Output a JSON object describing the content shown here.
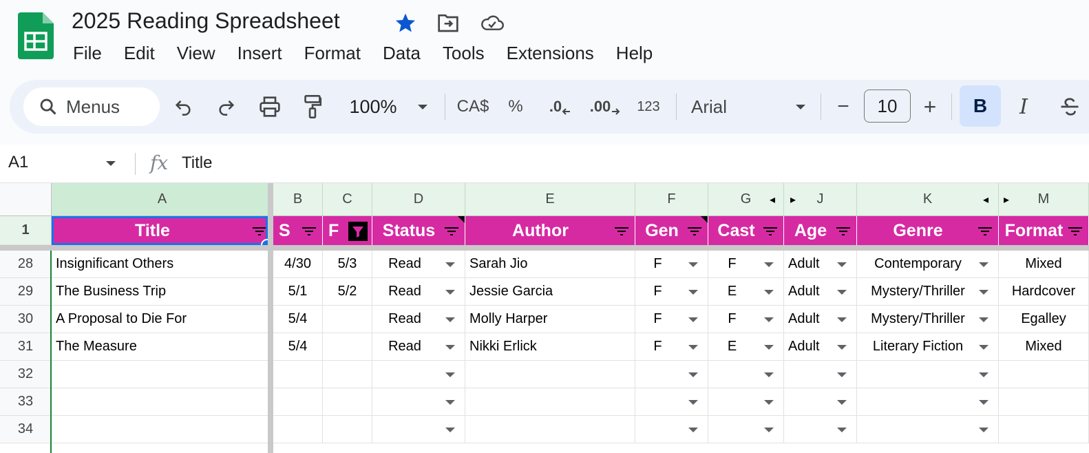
{
  "app": {
    "doc_title": "2025 Reading Spreadsheet",
    "menu": [
      "File",
      "Edit",
      "View",
      "Insert",
      "Format",
      "Data",
      "Tools",
      "Extensions",
      "Help"
    ]
  },
  "toolbar": {
    "search_label": "Menus",
    "zoom": "100%",
    "currency": "CA$",
    "percent": "%",
    "decrease_decimal": ".0",
    "increase_decimal": ".00",
    "number_format": "123",
    "font": "Arial",
    "font_size": "10",
    "minus": "−",
    "plus": "+",
    "bold": "B",
    "italic": "I"
  },
  "formula_bar": {
    "cell_ref": "A1",
    "fx": "fx",
    "value": "Title"
  },
  "sheet": {
    "columns": [
      "A",
      "B",
      "C",
      "D",
      "E",
      "F",
      "G",
      "J",
      "K",
      "M"
    ],
    "header_row_number": "1",
    "headers": [
      "Title",
      "S",
      "F",
      "Status",
      "Author",
      "Gen",
      "Cast",
      "Age",
      "Genre",
      "Format"
    ],
    "rows": [
      {
        "num": "28",
        "cells": [
          "Insignificant Others",
          "4/30",
          "5/3",
          "Read",
          "Sarah Jio",
          "F",
          "F",
          "Adult",
          "Contemporary",
          "Mixed"
        ]
      },
      {
        "num": "29",
        "cells": [
          "The Business Trip",
          "5/1",
          "5/2",
          "Read",
          "Jessie Garcia",
          "F",
          "E",
          "Adult",
          "Mystery/Thriller",
          "Hardcover"
        ]
      },
      {
        "num": "30",
        "cells": [
          "A Proposal to Die For",
          "5/4",
          "",
          "Read",
          "Molly Harper",
          "F",
          "F",
          "Adult",
          "Mystery/Thriller",
          "Egalley"
        ]
      },
      {
        "num": "31",
        "cells": [
          "The Measure",
          "5/4",
          "",
          "Read",
          "Nikki Erlick",
          "F",
          "E",
          "Adult",
          "Literary Fiction",
          "Mixed"
        ]
      },
      {
        "num": "32",
        "cells": [
          "",
          "",
          "",
          "",
          "",
          "",
          "",
          "",
          "",
          ""
        ]
      },
      {
        "num": "33",
        "cells": [
          "",
          "",
          "",
          "",
          "",
          "",
          "",
          "",
          "",
          ""
        ]
      },
      {
        "num": "34",
        "cells": [
          "",
          "",
          "",
          "",
          "",
          "",
          "",
          "",
          "",
          ""
        ]
      }
    ]
  },
  "colors": {
    "header_fill": "#d62aa3",
    "header_text": "#ffffff",
    "column_header_fill": "#e6f4ea",
    "accent_blue": "#1a73e8",
    "star": "#0b57d0",
    "logo_green": "#0f9d58"
  }
}
